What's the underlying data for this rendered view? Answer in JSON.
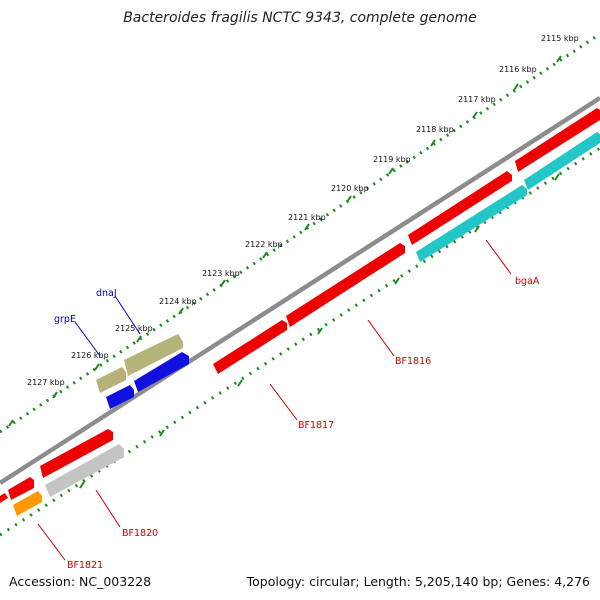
{
  "title": "Bacteroides fragilis NCTC 9343, complete genome",
  "footer": {
    "accession": "Accession: NC_003228",
    "summary": "Topology: circular; Length: 5,205,140 bp; Genes: 4,276"
  },
  "colors": {
    "ticks": "#1a8a1a",
    "backbone": "#8c8c8c",
    "red_feature": "#ee0000",
    "cyan_feature": "#22c6c6",
    "olive_feature": "#b5b27a",
    "blue_feature": "#1010e0",
    "gray_feature": "#c4c4c4",
    "orange_feature": "#ff9900",
    "red_label": "#cc0000",
    "blue_label": "#0000bb"
  },
  "ruler": {
    "ticks": [
      "2115 kbp",
      "2116 kbp",
      "2117 kbp",
      "2118 kbp",
      "2119 kbp",
      "2120 kbp",
      "2121 kbp",
      "2122 kbp",
      "2123 kbp",
      "2124 kbp",
      "2125 kbp",
      "2126 kbp",
      "2127 kbp"
    ]
  },
  "genes": {
    "bgaA": "bgaA",
    "BF1816": "BF1816",
    "BF1817": "BF1817",
    "BF1820": "BF1820",
    "BF1821": "BF1821",
    "dnaJ": "dnaJ",
    "grpE": "grpE"
  }
}
